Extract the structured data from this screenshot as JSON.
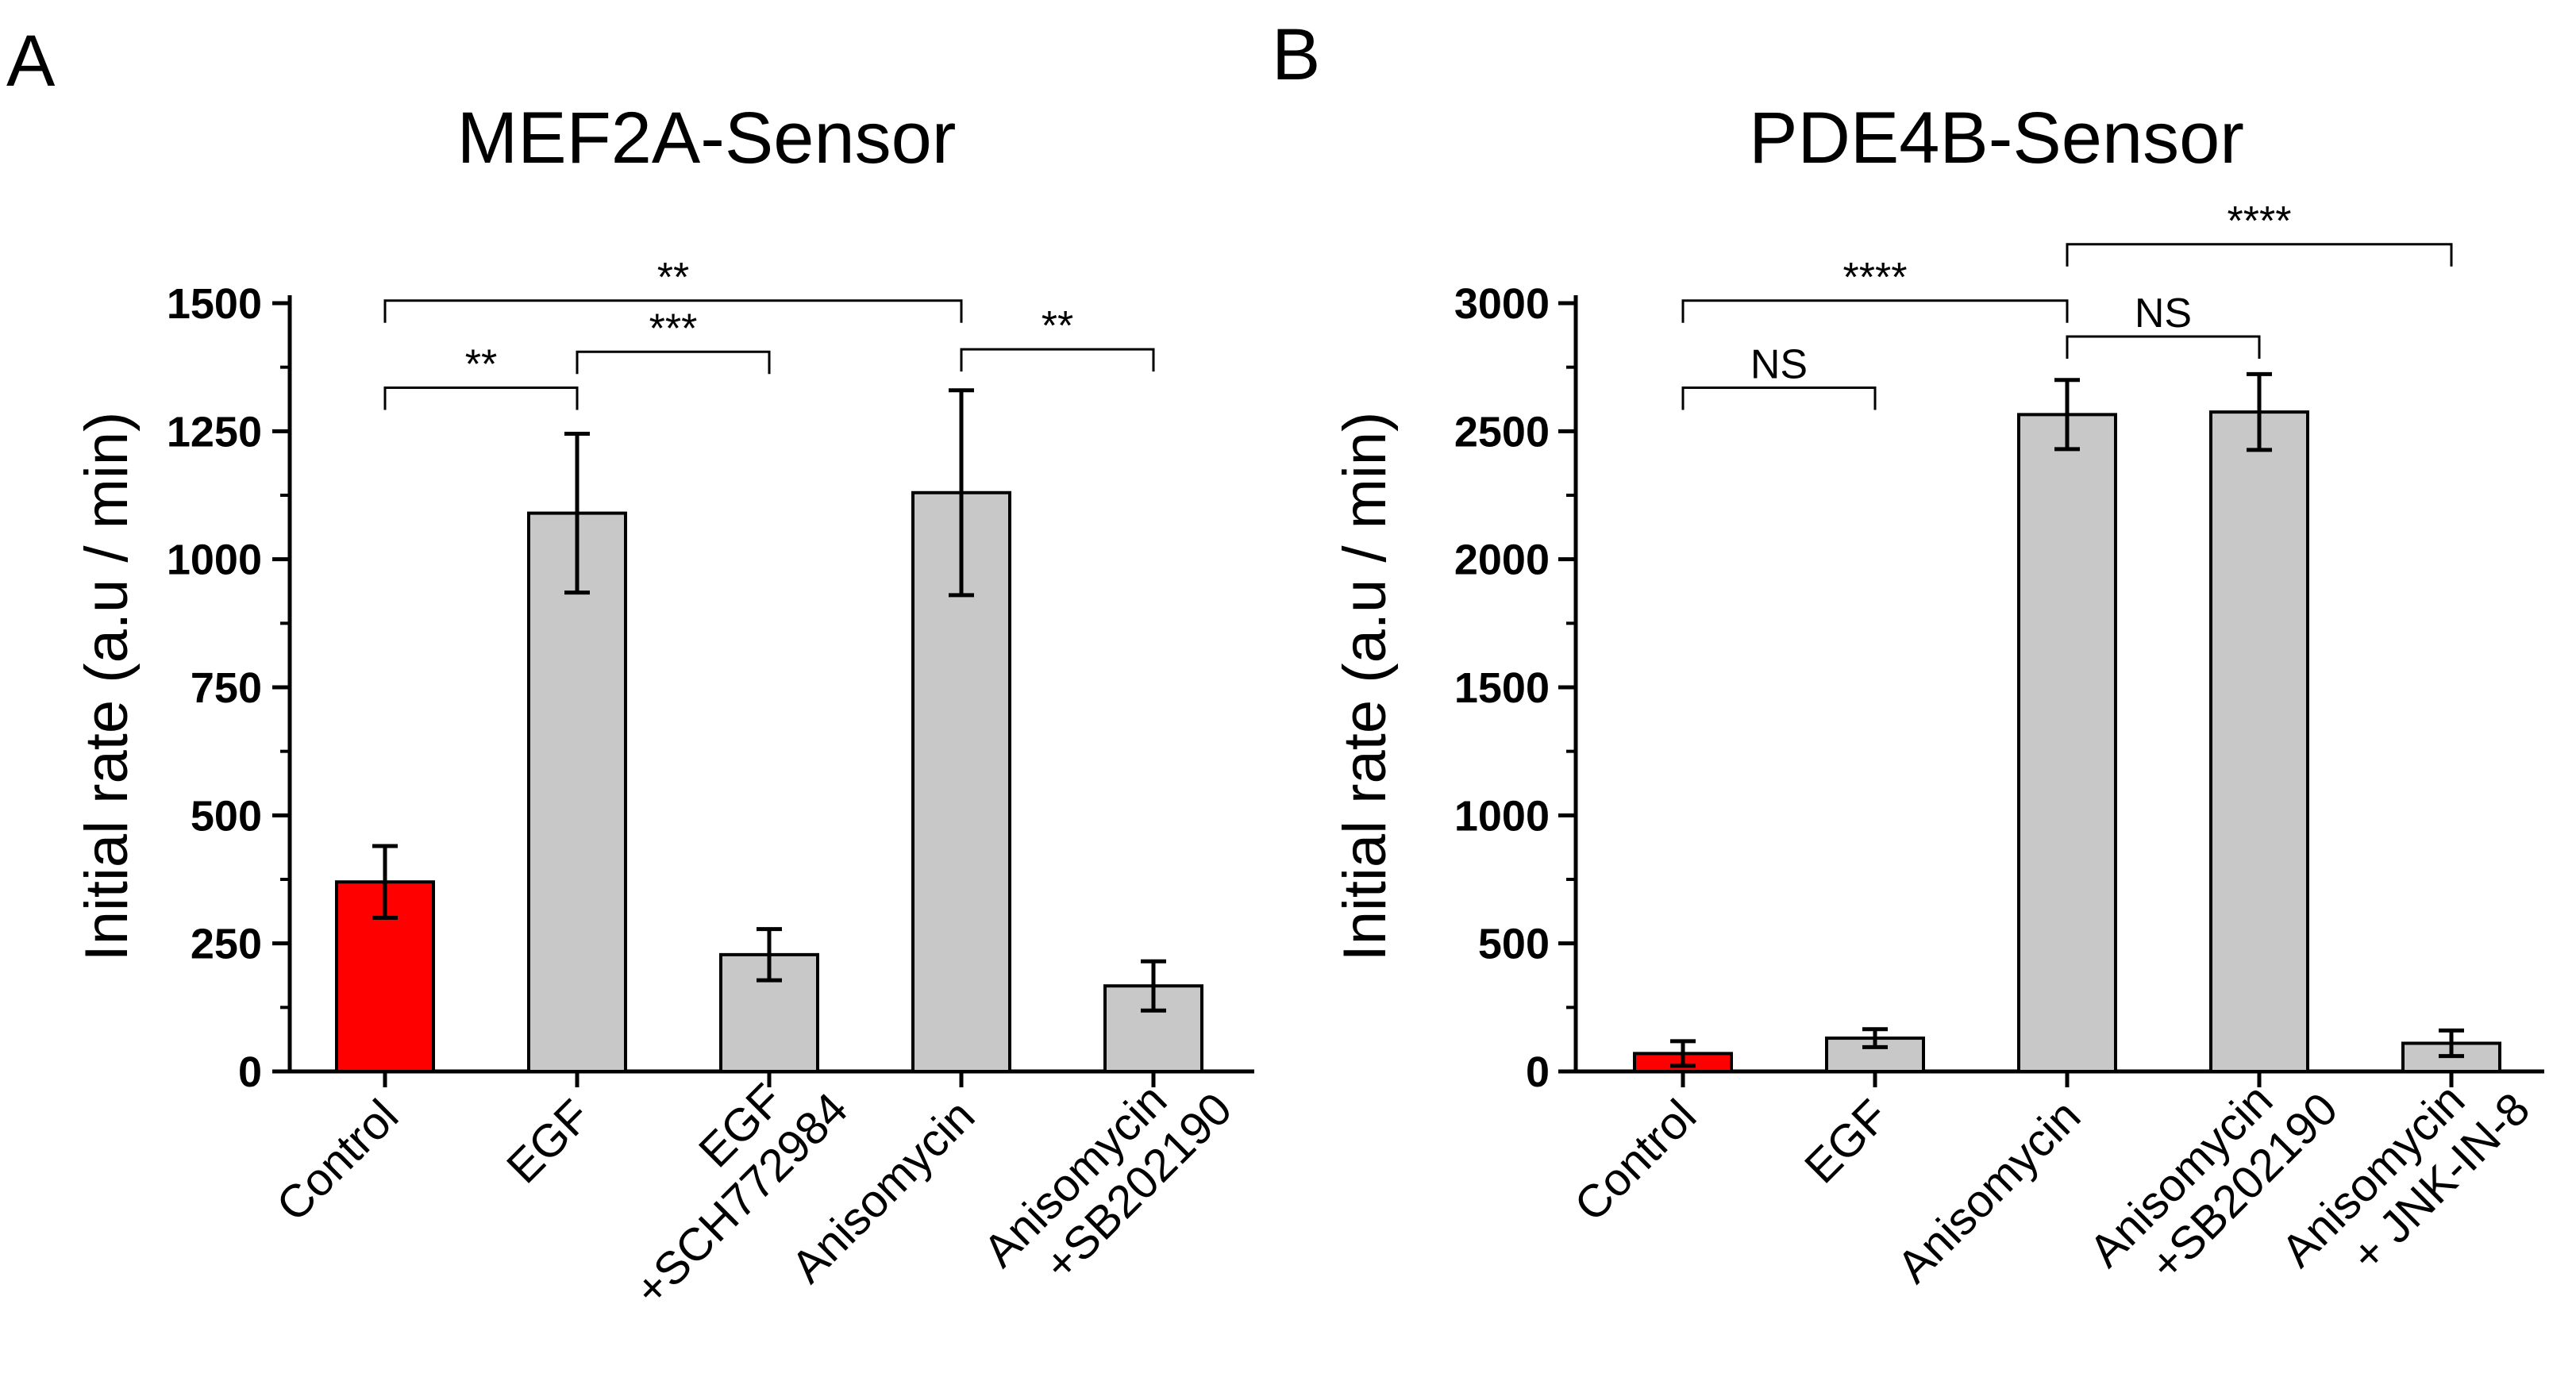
{
  "colors": {
    "control_fill": "#ff0000",
    "bar_fill": "#c8c8c8",
    "outline": "#000000"
  },
  "chart_data": [
    {
      "panel": "A",
      "type": "bar",
      "title": "MEF2A-Sensor",
      "ylabel": "Initial rate (a.u / min)",
      "xlabel": "",
      "ylim": [
        0,
        1500
      ],
      "yticks": [
        0,
        250,
        500,
        750,
        1000,
        1250,
        1500
      ],
      "categories": [
        [
          "Control"
        ],
        [
          "EGF"
        ],
        [
          "EGF",
          "+SCH772984"
        ],
        [
          "Anisomycin"
        ],
        [
          "Anisomycin",
          "+SB202190"
        ]
      ],
      "values": [
        370,
        1090,
        228,
        1130,
        167
      ],
      "errors": [
        70,
        155,
        50,
        200,
        48
      ],
      "bar_colors": [
        "#ff0000",
        "#c8c8c8",
        "#c8c8c8",
        "#c8c8c8",
        "#c8c8c8"
      ],
      "significance": [
        {
          "from": 0,
          "to": 3,
          "label": "**",
          "level": 1505
        },
        {
          "from": 0,
          "to": 1,
          "label": "**",
          "level": 1335
        },
        {
          "from": 1,
          "to": 2,
          "label": "***",
          "level": 1405
        },
        {
          "from": 3,
          "to": 4,
          "label": "**",
          "level": 1410
        }
      ]
    },
    {
      "panel": "B",
      "type": "bar",
      "title": "PDE4B-Sensor",
      "ylabel": "Initial rate (a.u / min)",
      "xlabel": "",
      "ylim": [
        0,
        3000
      ],
      "yticks": [
        0,
        500,
        1000,
        1500,
        2000,
        2500,
        3000
      ],
      "categories": [
        [
          "Control"
        ],
        [
          "EGF"
        ],
        [
          "Anisomycin"
        ],
        [
          "Anisomycin",
          "+SB202190"
        ],
        [
          "Anisomycin",
          "+ JNK-IN-8"
        ]
      ],
      "values": [
        70,
        130,
        2565,
        2575,
        110
      ],
      "errors": [
        48,
        35,
        135,
        148,
        50
      ],
      "bar_colors": [
        "#ff0000",
        "#c8c8c8",
        "#c8c8c8",
        "#c8c8c8",
        "#c8c8c8"
      ],
      "significance": [
        {
          "from": 0,
          "to": 1,
          "label": "NS",
          "level": 2670
        },
        {
          "from": 0,
          "to": 2,
          "label": "****",
          "level": 3010
        },
        {
          "from": 2,
          "to": 3,
          "label": "NS",
          "level": 2870
        },
        {
          "from": 2,
          "to": 4,
          "label": "****",
          "level": 3230
        }
      ]
    }
  ]
}
